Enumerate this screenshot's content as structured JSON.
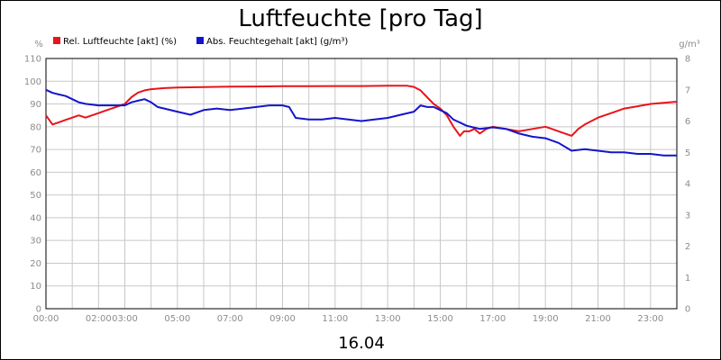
{
  "chart_data": {
    "type": "line",
    "title": "Luftfeuchte [pro Tag]",
    "date_label": "16.04",
    "left_unit": "%",
    "right_unit": "g/m³",
    "x_ticks": [
      "00:00",
      "02:00",
      "03:00",
      "05:00",
      "07:00",
      "09:00",
      "11:00",
      "13:00",
      "15:00",
      "17:00",
      "19:00",
      "21:00",
      "23:00"
    ],
    "x_tick_hours": [
      0,
      2,
      3,
      5,
      7,
      9,
      11,
      13,
      15,
      17,
      19,
      21,
      23
    ],
    "xlim": [
      0,
      24
    ],
    "y_left_ticks": [
      "0",
      "10",
      "20",
      "30",
      "40",
      "50",
      "60",
      "70",
      "80",
      "90",
      "100",
      "110"
    ],
    "ylim_left": [
      0,
      110
    ],
    "y_right_ticks": [
      "0",
      "1",
      "2",
      "3",
      "4",
      "5",
      "6",
      "7",
      "8"
    ],
    "ylim_right": [
      0,
      8
    ],
    "grid": true,
    "legend_position": "top-left",
    "series": [
      {
        "name": "Rel. Luftfeuchte [akt] (%)",
        "color": "#e8141a",
        "axis": "left",
        "x": [
          0,
          0.25,
          0.5,
          0.75,
          1,
          1.25,
          1.5,
          1.75,
          2,
          2.25,
          2.5,
          2.75,
          3,
          3.25,
          3.5,
          3.75,
          4,
          4.5,
          5,
          6,
          7,
          8,
          9,
          10,
          11,
          12,
          13,
          13.75,
          14,
          14.25,
          14.5,
          14.75,
          15,
          15.25,
          15.5,
          15.75,
          15.9,
          16.1,
          16.3,
          16.5,
          16.75,
          17,
          17.5,
          18,
          18.5,
          19,
          19.25,
          19.5,
          19.75,
          20,
          20.25,
          20.5,
          21,
          21.5,
          22,
          22.5,
          23,
          23.5,
          24
        ],
        "y": [
          85,
          81,
          82,
          83,
          84,
          85,
          84,
          85,
          86,
          87,
          88,
          89,
          90,
          93,
          95,
          96,
          96.5,
          97,
          97.2,
          97.4,
          97.6,
          97.7,
          97.8,
          97.8,
          97.9,
          97.9,
          98,
          98,
          97.5,
          96,
          93,
          90,
          88,
          85,
          80,
          76,
          78,
          78,
          79,
          77,
          79,
          80,
          79,
          78,
          79,
          80,
          79,
          78,
          77,
          76,
          79,
          81,
          84,
          86,
          88,
          89,
          90,
          90.5,
          91
        ]
      },
      {
        "name": "Abs. Feuchtegehalt [akt] (g/m³)",
        "color": "#1414cc",
        "axis": "right",
        "x": [
          0,
          0.25,
          0.5,
          0.75,
          1,
          1.25,
          1.5,
          2,
          2.5,
          3,
          3.25,
          3.5,
          3.75,
          4,
          4.25,
          4.5,
          5,
          5.5,
          6,
          6.5,
          7,
          7.5,
          8,
          8.5,
          9,
          9.25,
          9.5,
          10,
          10.5,
          11,
          11.5,
          12,
          12.5,
          13,
          13.5,
          14,
          14.25,
          14.5,
          14.75,
          15,
          15.25,
          15.5,
          15.75,
          16,
          16.25,
          16.5,
          17,
          17.5,
          18,
          18.5,
          19,
          19.5,
          20,
          20.5,
          21,
          21.5,
          22,
          22.5,
          23,
          23.5,
          24
        ],
        "y": [
          7.0,
          6.9,
          6.85,
          6.8,
          6.7,
          6.6,
          6.55,
          6.5,
          6.5,
          6.5,
          6.6,
          6.65,
          6.7,
          6.6,
          6.45,
          6.4,
          6.3,
          6.2,
          6.35,
          6.4,
          6.35,
          6.4,
          6.45,
          6.5,
          6.5,
          6.45,
          6.1,
          6.05,
          6.05,
          6.1,
          6.05,
          6.0,
          6.05,
          6.1,
          6.2,
          6.3,
          6.5,
          6.45,
          6.45,
          6.35,
          6.25,
          6.05,
          5.95,
          5.85,
          5.8,
          5.75,
          5.8,
          5.75,
          5.6,
          5.5,
          5.45,
          5.3,
          5.05,
          5.1,
          5.05,
          5.0,
          5.0,
          4.95,
          4.95,
          4.9,
          4.9
        ]
      }
    ]
  }
}
